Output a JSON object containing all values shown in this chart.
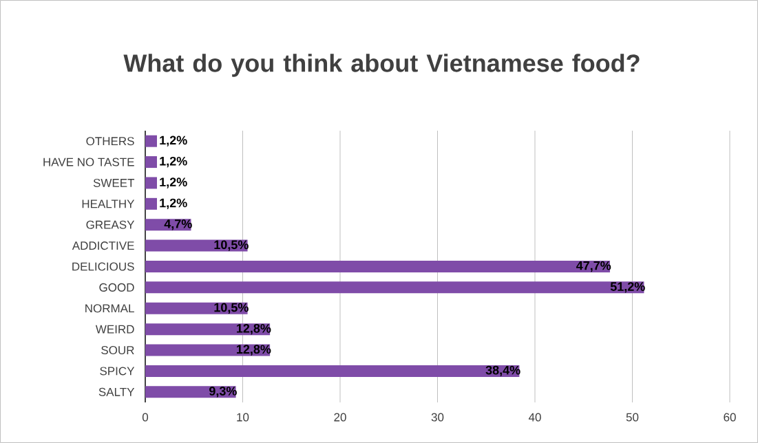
{
  "chart_data": {
    "type": "bar",
    "orientation": "horizontal",
    "title": "What do you think about Vietnamese food?",
    "categories": [
      "OTHERS",
      "HAVE NO TASTE",
      "SWEET",
      "HEALTHY",
      "GREASY",
      "ADDICTIVE",
      "DELICIOUS",
      "GOOD",
      "NORMAL",
      "WEIRD",
      "SOUR",
      "SPICY",
      "SALTY"
    ],
    "values": [
      1.2,
      1.2,
      1.2,
      1.2,
      4.7,
      10.5,
      47.7,
      51.2,
      10.5,
      12.8,
      12.8,
      38.4,
      9.3
    ],
    "value_labels": [
      "1,2%",
      "1,2%",
      "1,2%",
      "1,2%",
      "4,7%",
      "10,5%",
      "47,7%",
      "51,2%",
      "10,5%",
      "12,8%",
      "12,8%",
      "38,4%",
      "9,3%"
    ],
    "color": "#7f4ca8",
    "xlim": [
      0,
      60
    ],
    "xticks": [
      0,
      10,
      20,
      30,
      40,
      50,
      60
    ],
    "grid": "x"
  }
}
